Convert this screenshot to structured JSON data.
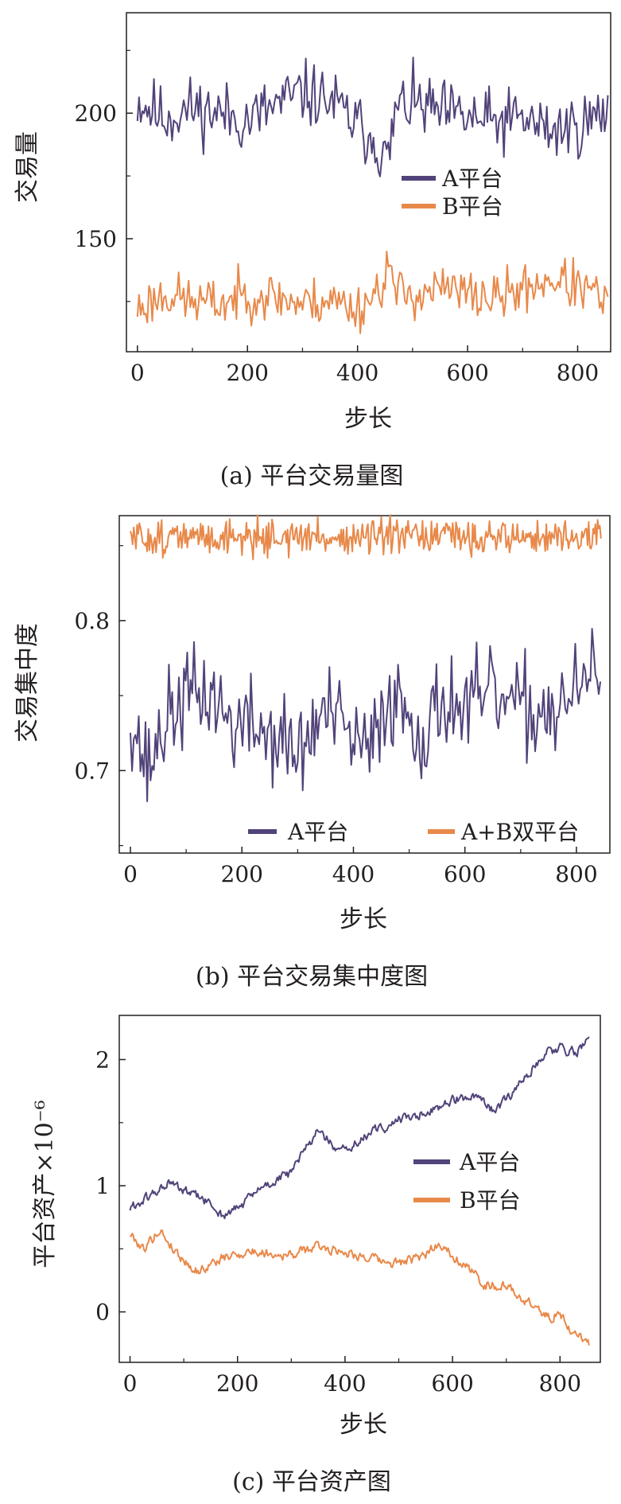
{
  "panels": [
    {
      "caption": "(a)  平台交易量图",
      "chart_data": {
        "type": "line",
        "ylabel": "交易量",
        "xlabel": "步长",
        "xlim": [
          -20,
          860
        ],
        "ylim": [
          105,
          240
        ],
        "xticks": [
          0,
          200,
          400,
          600,
          800
        ],
        "xtick_labels": [
          "0",
          "200",
          "400",
          "600",
          "800"
        ],
        "yticks": [
          150,
          200
        ],
        "ytick_labels": [
          "150",
          "200"
        ],
        "minor_yticks": [
          125,
          175,
          225
        ],
        "legend_position": "center-right",
        "series": [
          {
            "name": "A平台",
            "color": "#52437a",
            "kind": "noise",
            "points": [
              [
                0,
                205
              ],
              [
                50,
                198
              ],
              [
                100,
                202
              ],
              [
                150,
                200
              ],
              [
                200,
                197
              ],
              [
                250,
                203
              ],
              [
                300,
                208
              ],
              [
                350,
                205
              ],
              [
                400,
                195
              ],
              [
                430,
                190
              ],
              [
                455,
                180
              ],
              [
                470,
                202
              ],
              [
                500,
                204
              ],
              [
                550,
                200
              ],
              [
                600,
                198
              ],
              [
                650,
                196
              ],
              [
                700,
                198
              ],
              [
                750,
                193
              ],
              [
                800,
                195
              ],
              [
                855,
                200
              ]
            ],
            "amplitude": 12,
            "min": 173,
            "max": 228,
            "period": 3,
            "seed": 11
          },
          {
            "name": "B平台",
            "color": "#e8894a",
            "kind": "noise",
            "points": [
              [
                0,
                122
              ],
              [
                50,
                128
              ],
              [
                100,
                125
              ],
              [
                150,
                124
              ],
              [
                200,
                128
              ],
              [
                250,
                127
              ],
              [
                300,
                124
              ],
              [
                350,
                126
              ],
              [
                400,
                122
              ],
              [
                440,
                130
              ],
              [
                455,
                140
              ],
              [
                470,
                128
              ],
              [
                500,
                128
              ],
              [
                550,
                130
              ],
              [
                600,
                128
              ],
              [
                650,
                126
              ],
              [
                700,
                130
              ],
              [
                750,
                134
              ],
              [
                800,
                131
              ],
              [
                855,
                125
              ]
            ],
            "amplitude": 9,
            "min": 107,
            "max": 154,
            "period": 3,
            "seed": 23
          }
        ]
      }
    },
    {
      "caption": "(b)  平台交易集中度图",
      "chart_data": {
        "type": "line",
        "ylabel": "交易集中度",
        "xlabel": "步长",
        "xlim": [
          -20,
          860
        ],
        "ylim": [
          0.645,
          0.87
        ],
        "xticks": [
          0,
          200,
          400,
          600,
          800
        ],
        "xtick_labels": [
          "0",
          "200",
          "400",
          "600",
          "800"
        ],
        "yticks": [
          0.7,
          0.8
        ],
        "ytick_labels": [
          "0.7",
          "0.8"
        ],
        "minor_yticks": [
          0.65,
          0.75,
          0.85
        ],
        "legend_position": "bottom",
        "series": [
          {
            "name": "A平台",
            "color": "#52437a",
            "kind": "noise",
            "points": [
              [
                0,
                0.74
              ],
              [
                30,
                0.7
              ],
              [
                60,
                0.73
              ],
              [
                100,
                0.75
              ],
              [
                150,
                0.75
              ],
              [
                180,
                0.73
              ],
              [
                220,
                0.73
              ],
              [
                270,
                0.72
              ],
              [
                300,
                0.71
              ],
              [
                350,
                0.74
              ],
              [
                400,
                0.72
              ],
              [
                430,
                0.71
              ],
              [
                460,
                0.75
              ],
              [
                500,
                0.74
              ],
              [
                530,
                0.72
              ],
              [
                560,
                0.75
              ],
              [
                600,
                0.74
              ],
              [
                650,
                0.75
              ],
              [
                700,
                0.74
              ],
              [
                750,
                0.74
              ],
              [
                800,
                0.75
              ],
              [
                845,
                0.77
              ]
            ],
            "amplitude": 0.03,
            "min": 0.655,
            "max": 0.818,
            "period": 3,
            "seed": 37
          },
          {
            "name": "A+B双平台",
            "color": "#e8894a",
            "kind": "noise",
            "points": [
              [
                0,
                0.855
              ],
              [
                200,
                0.856
              ],
              [
                400,
                0.855
              ],
              [
                600,
                0.856
              ],
              [
                845,
                0.855
              ]
            ],
            "amplitude": 0.011,
            "min": 0.838,
            "max": 0.874,
            "period": 2,
            "seed": 51
          }
        ]
      }
    },
    {
      "caption": "(c)  平台资产图",
      "chart_data": {
        "type": "line",
        "ylabel": "平台资产×10⁻⁶",
        "xlabel": "步长",
        "xlim": [
          -20,
          875
        ],
        "ylim": [
          -0.4,
          2.35
        ],
        "xticks": [
          0,
          200,
          400,
          600,
          800
        ],
        "xtick_labels": [
          "0",
          "200",
          "400",
          "600",
          "800"
        ],
        "yticks": [
          0,
          1,
          2
        ],
        "ytick_labels": [
          "0",
          "1",
          "2"
        ],
        "minor_yticks": [
          -0.5,
          0.5,
          1.5
        ],
        "legend_position": "center-right",
        "series": [
          {
            "name": "A平台",
            "color": "#52437a",
            "kind": "walk",
            "points": [
              [
                0,
                0.82
              ],
              [
                40,
                0.92
              ],
              [
                70,
                1.02
              ],
              [
                100,
                0.96
              ],
              [
                140,
                0.88
              ],
              [
                175,
                0.76
              ],
              [
                200,
                0.82
              ],
              [
                250,
                1.0
              ],
              [
                300,
                1.1
              ],
              [
                350,
                1.45
              ],
              [
                390,
                1.25
              ],
              [
                450,
                1.42
              ],
              [
                500,
                1.52
              ],
              [
                550,
                1.58
              ],
              [
                600,
                1.68
              ],
              [
                640,
                1.7
              ],
              [
                680,
                1.58
              ],
              [
                720,
                1.78
              ],
              [
                770,
                2.05
              ],
              [
                800,
                2.1
              ],
              [
                830,
                2.05
              ],
              [
                855,
                2.18
              ]
            ],
            "amplitude": 0.03,
            "period": 2,
            "seed": 61
          },
          {
            "name": "B平台",
            "color": "#e8894a",
            "kind": "walk",
            "points": [
              [
                0,
                0.62
              ],
              [
                25,
                0.5
              ],
              [
                55,
                0.65
              ],
              [
                90,
                0.45
              ],
              [
                125,
                0.32
              ],
              [
                170,
                0.42
              ],
              [
                220,
                0.48
              ],
              [
                300,
                0.45
              ],
              [
                350,
                0.52
              ],
              [
                420,
                0.46
              ],
              [
                480,
                0.38
              ],
              [
                540,
                0.42
              ],
              [
                575,
                0.55
              ],
              [
                620,
                0.38
              ],
              [
                660,
                0.22
              ],
              [
                700,
                0.2
              ],
              [
                740,
                0.08
              ],
              [
                780,
                -0.05
              ],
              [
                800,
                0.0
              ],
              [
                820,
                -0.15
              ],
              [
                855,
                -0.25
              ]
            ],
            "amplitude": 0.03,
            "period": 2,
            "seed": 79
          }
        ]
      }
    }
  ]
}
